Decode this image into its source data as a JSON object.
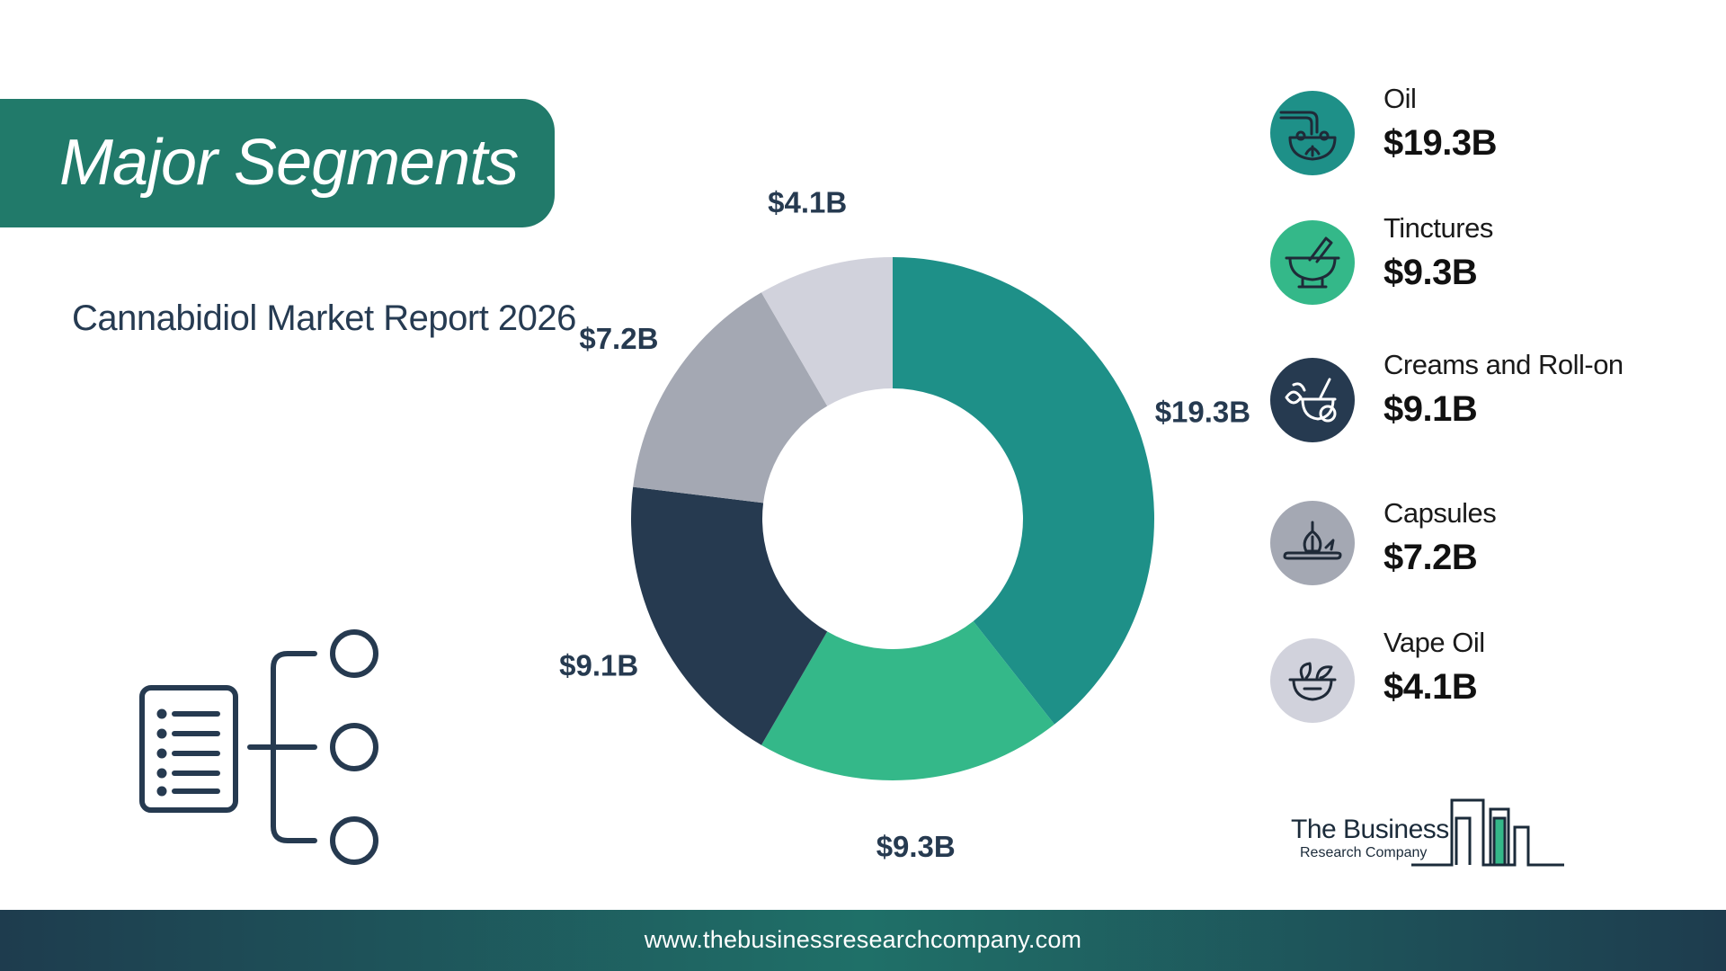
{
  "header": {
    "title": "Major Segments",
    "subtitle": "Cannabidiol Market Report 2026"
  },
  "chart_data": {
    "type": "pie",
    "variant": "donut",
    "title": "",
    "categories": [
      "Oil",
      "Tinctures",
      "Creams and Roll-on",
      "Capsules",
      "Vape Oil"
    ],
    "values": [
      19.3,
      9.3,
      9.1,
      7.2,
      4.1
    ],
    "value_labels": [
      "$19.3B",
      "$9.3B",
      "$9.1B",
      "$7.2B",
      "$4.1B"
    ],
    "unit": "$B",
    "colors": [
      "#1e9088",
      "#34b889",
      "#263a50",
      "#a4a8b3",
      "#d1d2dc"
    ],
    "legend_position": "right"
  },
  "legend": {
    "items": [
      {
        "name": "Oil",
        "value": "$19.3B",
        "icon": "oil-bowl-icon",
        "color": "#1e9088"
      },
      {
        "name": "Tinctures",
        "value": "$9.3B",
        "icon": "mortar-pestle-icon",
        "color": "#34b889"
      },
      {
        "name": "Creams and Roll-on",
        "value": "$9.1B",
        "icon": "herb-mortar-icon",
        "color": "#263a50"
      },
      {
        "name": "Capsules",
        "value": "$7.2B",
        "icon": "garlic-board-icon",
        "color": "#a4a8b3"
      },
      {
        "name": "Vape Oil",
        "value": "$4.1B",
        "icon": "herb-bowl-icon",
        "color": "#d1d2dc"
      }
    ]
  },
  "logo": {
    "line1": "The Business",
    "line2": "Research Company"
  },
  "footer": {
    "url": "www.thebusinessresearchcompany.com"
  },
  "decor": {
    "icon": "segments-tree-icon"
  }
}
